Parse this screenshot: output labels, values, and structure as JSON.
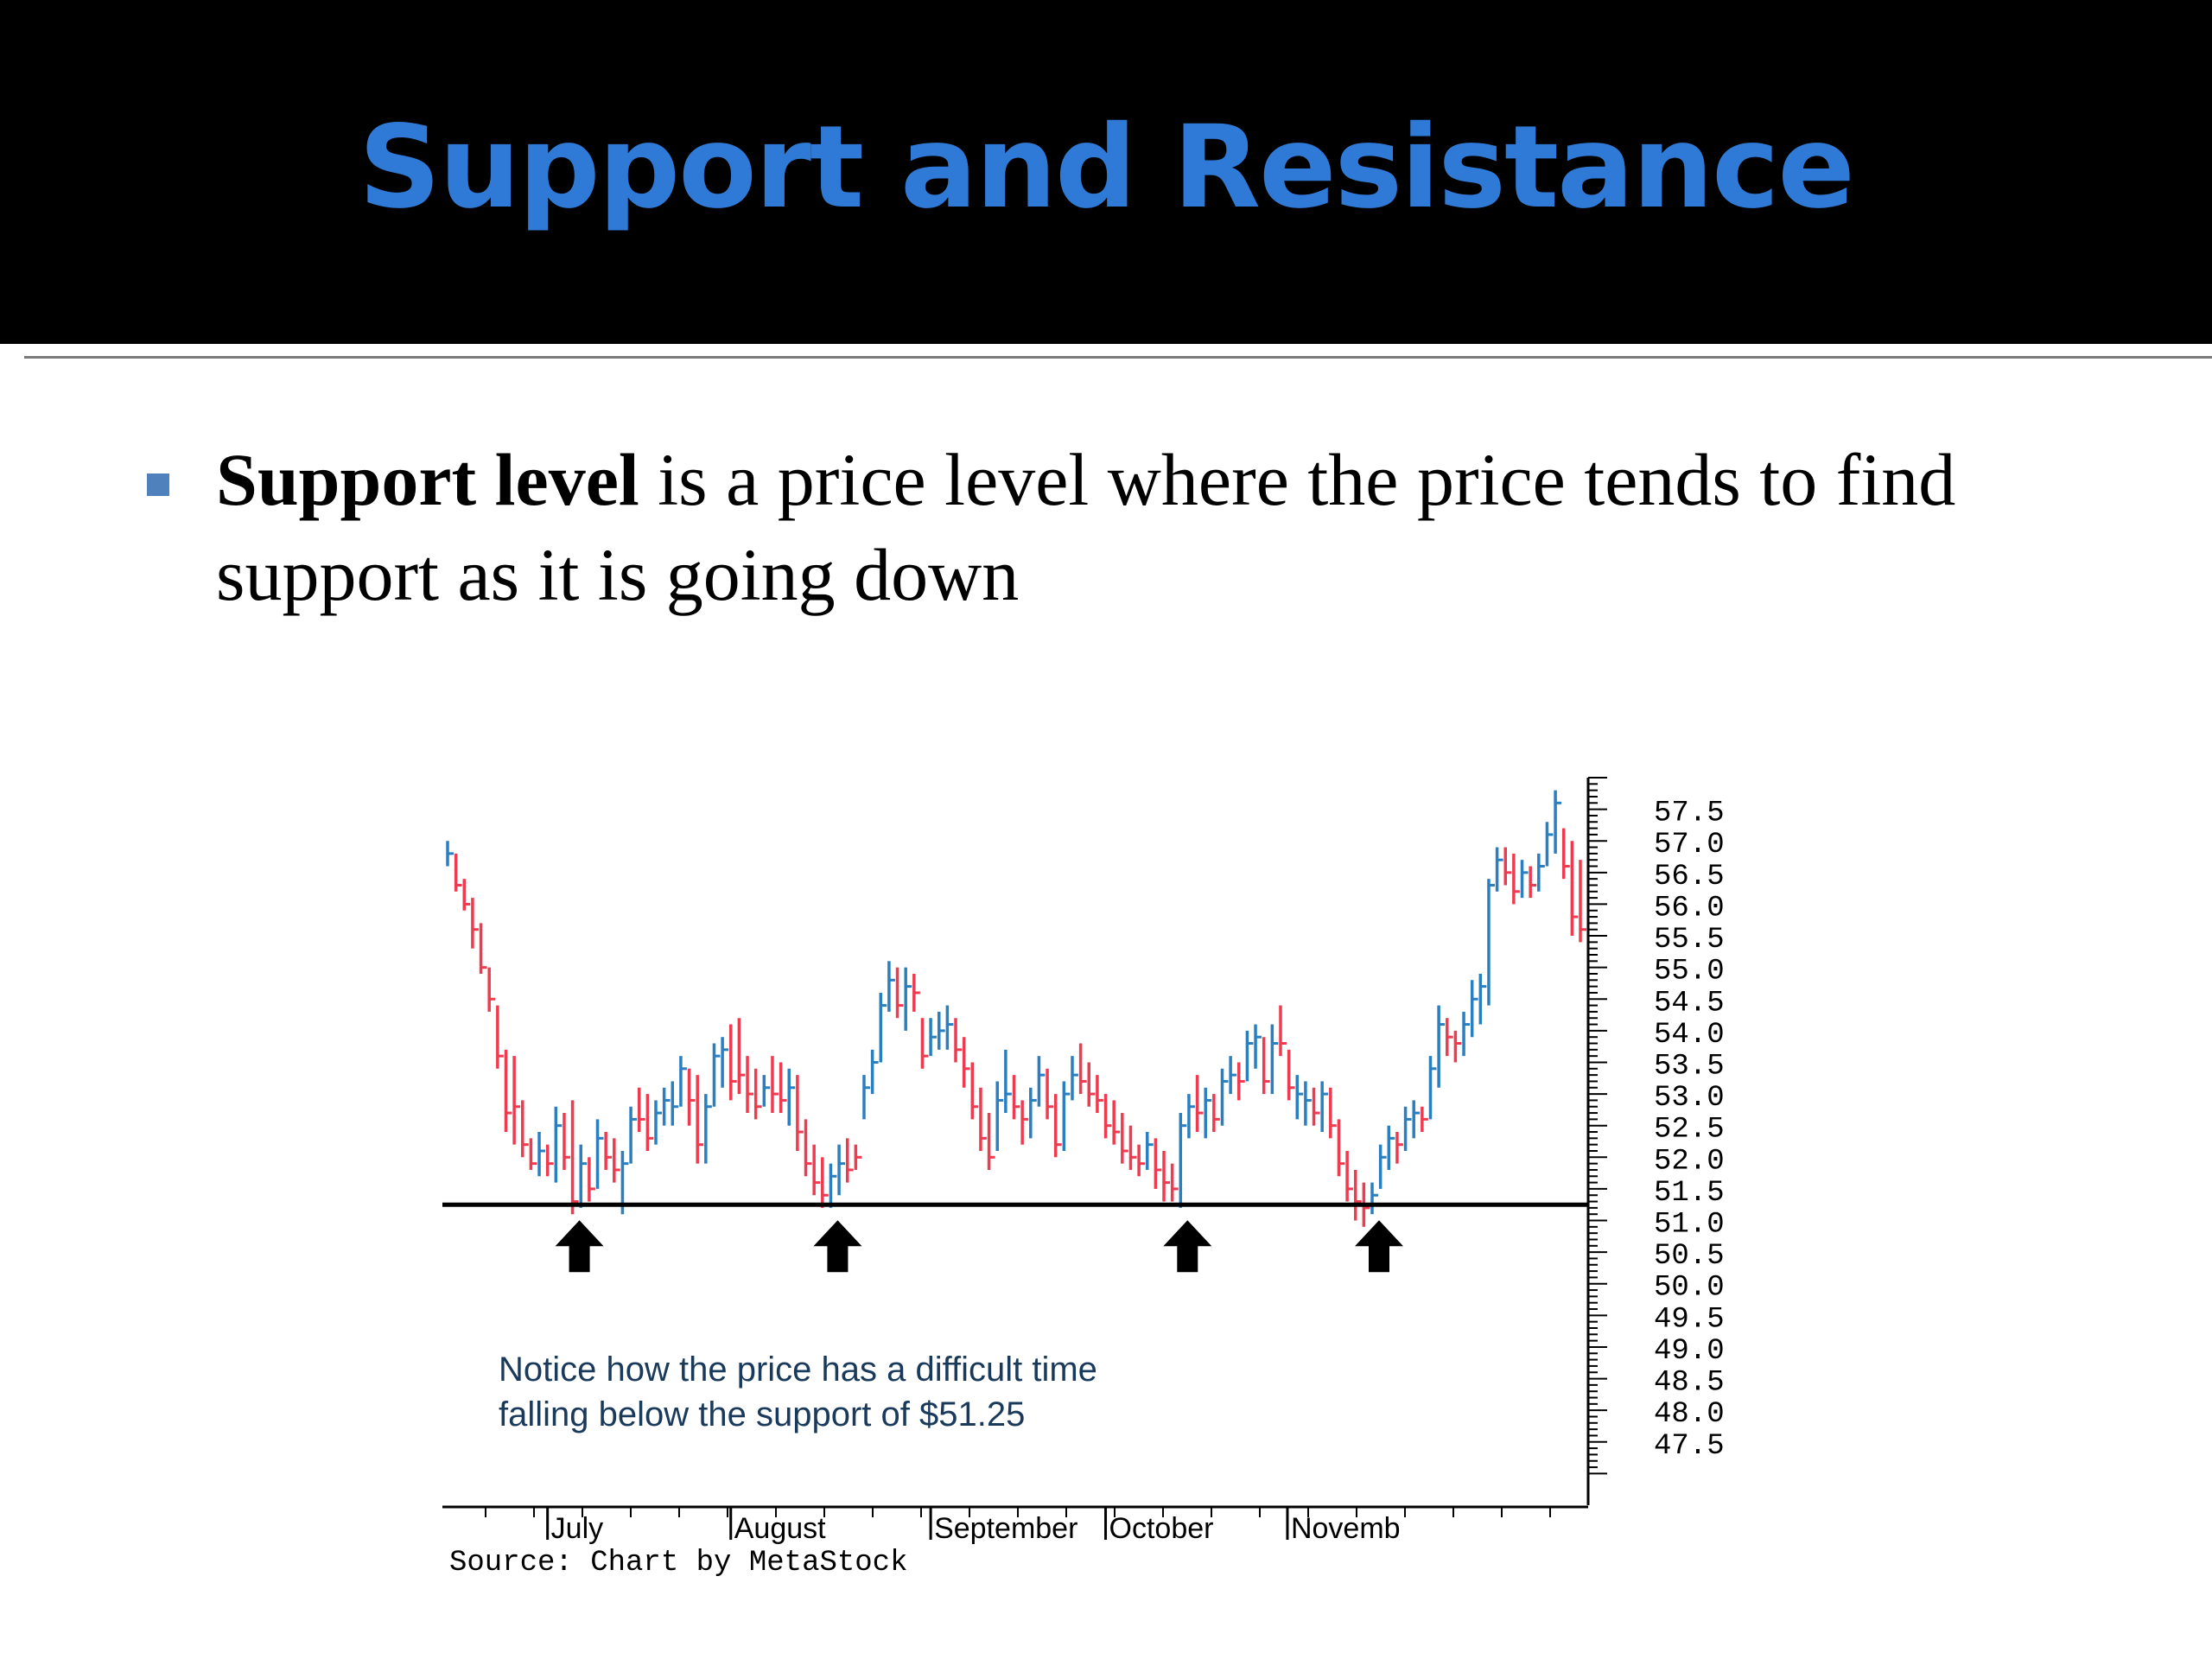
{
  "slide": {
    "title": "Support and Resistance",
    "bullet": {
      "term": "Support level",
      "text": " is a price level where the price tends to find support as it is going down"
    }
  },
  "colors": {
    "title": "#2e7ad6",
    "up_bar": "#2a7fc1",
    "down_bar": "#ee3b4f",
    "bullet_marker": "#4f81bd"
  },
  "chart_data": {
    "type": "ohlc",
    "source": "Source: Chart by MetaStock",
    "annotation": [
      "Notice how the price has a difficult time",
      "falling below the support of $51.25"
    ],
    "support_level": 51.25,
    "ylim": [
      46.5,
      58.0
    ],
    "y_ticks": [
      "57.5",
      "57.0",
      "56.5",
      "56.0",
      "55.5",
      "55.0",
      "54.5",
      "54.0",
      "53.5",
      "53.0",
      "52.5",
      "52.0",
      "51.5",
      "51.0",
      "50.5",
      "50.0",
      "49.5",
      "49.0",
      "48.5",
      "48.0",
      "47.5"
    ],
    "months": [
      "July",
      "August",
      "September",
      "October",
      "Novemb"
    ],
    "arrows_at_bar": [
      15,
      46,
      88,
      111
    ],
    "bars": [
      {
        "h": 57.0,
        "l": 56.6,
        "c": 56.8,
        "d": "up"
      },
      {
        "h": 56.8,
        "l": 56.2,
        "c": 56.3,
        "d": "dn"
      },
      {
        "h": 56.4,
        "l": 55.9,
        "c": 56.0,
        "d": "dn"
      },
      {
        "h": 56.1,
        "l": 55.3,
        "c": 55.6,
        "d": "dn"
      },
      {
        "h": 55.7,
        "l": 54.9,
        "c": 55.0,
        "d": "dn"
      },
      {
        "h": 55.0,
        "l": 54.3,
        "c": 54.5,
        "d": "dn"
      },
      {
        "h": 54.4,
        "l": 53.4,
        "c": 53.6,
        "d": "dn"
      },
      {
        "h": 53.7,
        "l": 52.4,
        "c": 52.7,
        "d": "dn"
      },
      {
        "h": 53.6,
        "l": 52.2,
        "c": 52.8,
        "d": "dn"
      },
      {
        "h": 52.9,
        "l": 52.0,
        "c": 52.2,
        "d": "dn"
      },
      {
        "h": 52.3,
        "l": 51.8,
        "c": 51.9,
        "d": "dn"
      },
      {
        "h": 52.4,
        "l": 51.7,
        "c": 52.1,
        "d": "up"
      },
      {
        "h": 52.2,
        "l": 51.7,
        "c": 51.9,
        "d": "dn"
      },
      {
        "h": 52.8,
        "l": 51.6,
        "c": 52.5,
        "d": "up"
      },
      {
        "h": 52.7,
        "l": 51.8,
        "c": 52.0,
        "d": "dn"
      },
      {
        "h": 52.9,
        "l": 51.1,
        "c": 51.3,
        "d": "dn"
      },
      {
        "h": 52.2,
        "l": 51.2,
        "c": 51.9,
        "d": "up"
      },
      {
        "h": 52.0,
        "l": 51.3,
        "c": 51.5,
        "d": "dn"
      },
      {
        "h": 52.6,
        "l": 51.5,
        "c": 52.3,
        "d": "up"
      },
      {
        "h": 52.4,
        "l": 51.8,
        "c": 52.0,
        "d": "dn"
      },
      {
        "h": 52.3,
        "l": 51.6,
        "c": 51.8,
        "d": "dn"
      },
      {
        "h": 52.1,
        "l": 51.1,
        "c": 51.9,
        "d": "up"
      },
      {
        "h": 52.8,
        "l": 51.9,
        "c": 52.6,
        "d": "up"
      },
      {
        "h": 53.1,
        "l": 52.4,
        "c": 52.6,
        "d": "dn"
      },
      {
        "h": 53.0,
        "l": 52.1,
        "c": 52.3,
        "d": "dn"
      },
      {
        "h": 52.9,
        "l": 52.2,
        "c": 52.7,
        "d": "up"
      },
      {
        "h": 53.1,
        "l": 52.5,
        "c": 52.9,
        "d": "up"
      },
      {
        "h": 53.2,
        "l": 52.5,
        "c": 52.8,
        "d": "up"
      },
      {
        "h": 53.6,
        "l": 52.8,
        "c": 53.4,
        "d": "up"
      },
      {
        "h": 53.4,
        "l": 52.5,
        "c": 52.9,
        "d": "dn"
      },
      {
        "h": 53.3,
        "l": 51.9,
        "c": 52.2,
        "d": "dn"
      },
      {
        "h": 53.0,
        "l": 51.9,
        "c": 52.8,
        "d": "up"
      },
      {
        "h": 53.8,
        "l": 52.8,
        "c": 53.6,
        "d": "up"
      },
      {
        "h": 53.9,
        "l": 53.1,
        "c": 53.7,
        "d": "up"
      },
      {
        "h": 54.1,
        "l": 52.9,
        "c": 53.2,
        "d": "dn"
      },
      {
        "h": 54.2,
        "l": 53.0,
        "c": 53.3,
        "d": "dn"
      },
      {
        "h": 53.6,
        "l": 52.7,
        "c": 53.0,
        "d": "dn"
      },
      {
        "h": 53.4,
        "l": 52.6,
        "c": 52.8,
        "d": "dn"
      },
      {
        "h": 53.3,
        "l": 52.8,
        "c": 53.1,
        "d": "up"
      },
      {
        "h": 53.6,
        "l": 52.7,
        "c": 53.0,
        "d": "dn"
      },
      {
        "h": 53.5,
        "l": 52.7,
        "c": 52.9,
        "d": "dn"
      },
      {
        "h": 53.4,
        "l": 52.5,
        "c": 53.1,
        "d": "up"
      },
      {
        "h": 53.3,
        "l": 52.1,
        "c": 52.4,
        "d": "dn"
      },
      {
        "h": 52.6,
        "l": 51.7,
        "c": 51.9,
        "d": "dn"
      },
      {
        "h": 52.2,
        "l": 51.4,
        "c": 51.6,
        "d": "dn"
      },
      {
        "h": 52.0,
        "l": 51.2,
        "c": 51.4,
        "d": "dn"
      },
      {
        "h": 51.9,
        "l": 51.2,
        "c": 51.7,
        "d": "up"
      },
      {
        "h": 52.2,
        "l": 51.4,
        "c": 51.9,
        "d": "up"
      },
      {
        "h": 52.3,
        "l": 51.6,
        "c": 51.8,
        "d": "dn"
      },
      {
        "h": 52.2,
        "l": 51.8,
        "c": 52.0,
        "d": "dn"
      },
      {
        "h": 53.3,
        "l": 52.6,
        "c": 53.1,
        "d": "up"
      },
      {
        "h": 53.7,
        "l": 53.0,
        "c": 53.5,
        "d": "up"
      },
      {
        "h": 54.6,
        "l": 53.5,
        "c": 54.4,
        "d": "up"
      },
      {
        "h": 55.1,
        "l": 54.3,
        "c": 54.8,
        "d": "up"
      },
      {
        "h": 55.0,
        "l": 54.2,
        "c": 54.4,
        "d": "dn"
      },
      {
        "h": 55.0,
        "l": 54.0,
        "c": 54.7,
        "d": "up"
      },
      {
        "h": 54.9,
        "l": 54.3,
        "c": 54.6,
        "d": "dn"
      },
      {
        "h": 54.2,
        "l": 53.4,
        "c": 53.6,
        "d": "dn"
      },
      {
        "h": 54.2,
        "l": 53.6,
        "c": 53.9,
        "d": "up"
      },
      {
        "h": 54.3,
        "l": 53.7,
        "c": 54.0,
        "d": "up"
      },
      {
        "h": 54.4,
        "l": 53.7,
        "c": 54.1,
        "d": "up"
      },
      {
        "h": 54.2,
        "l": 53.5,
        "c": 53.7,
        "d": "dn"
      },
      {
        "h": 53.9,
        "l": 53.1,
        "c": 53.4,
        "d": "dn"
      },
      {
        "h": 53.5,
        "l": 52.6,
        "c": 52.8,
        "d": "dn"
      },
      {
        "h": 53.1,
        "l": 52.1,
        "c": 52.3,
        "d": "dn"
      },
      {
        "h": 52.7,
        "l": 51.8,
        "c": 52.0,
        "d": "dn"
      },
      {
        "h": 53.2,
        "l": 52.1,
        "c": 52.9,
        "d": "up"
      },
      {
        "h": 53.7,
        "l": 52.7,
        "c": 53.0,
        "d": "up"
      },
      {
        "h": 53.3,
        "l": 52.6,
        "c": 52.8,
        "d": "dn"
      },
      {
        "h": 52.9,
        "l": 52.2,
        "c": 52.6,
        "d": "dn"
      },
      {
        "h": 53.1,
        "l": 52.3,
        "c": 52.9,
        "d": "up"
      },
      {
        "h": 53.6,
        "l": 52.8,
        "c": 53.3,
        "d": "up"
      },
      {
        "h": 53.4,
        "l": 52.6,
        "c": 52.8,
        "d": "dn"
      },
      {
        "h": 53.0,
        "l": 52.0,
        "c": 52.2,
        "d": "dn"
      },
      {
        "h": 53.2,
        "l": 52.1,
        "c": 53.0,
        "d": "up"
      },
      {
        "h": 53.6,
        "l": 52.9,
        "c": 53.3,
        "d": "up"
      },
      {
        "h": 53.8,
        "l": 53.0,
        "c": 53.2,
        "d": "dn"
      },
      {
        "h": 53.5,
        "l": 52.8,
        "c": 53.0,
        "d": "dn"
      },
      {
        "h": 53.3,
        "l": 52.7,
        "c": 52.9,
        "d": "dn"
      },
      {
        "h": 53.0,
        "l": 52.3,
        "c": 52.5,
        "d": "dn"
      },
      {
        "h": 52.9,
        "l": 52.2,
        "c": 52.4,
        "d": "dn"
      },
      {
        "h": 52.7,
        "l": 51.9,
        "c": 52.1,
        "d": "dn"
      },
      {
        "h": 52.5,
        "l": 51.8,
        "c": 52.0,
        "d": "dn"
      },
      {
        "h": 52.2,
        "l": 51.7,
        "c": 51.9,
        "d": "dn"
      },
      {
        "h": 52.4,
        "l": 51.8,
        "c": 52.2,
        "d": "up"
      },
      {
        "h": 52.3,
        "l": 51.5,
        "c": 51.8,
        "d": "dn"
      },
      {
        "h": 52.1,
        "l": 51.3,
        "c": 51.6,
        "d": "dn"
      },
      {
        "h": 51.9,
        "l": 51.3,
        "c": 51.5,
        "d": "dn"
      },
      {
        "h": 52.7,
        "l": 51.2,
        "c": 52.5,
        "d": "up"
      },
      {
        "h": 53.0,
        "l": 52.3,
        "c": 52.8,
        "d": "up"
      },
      {
        "h": 53.3,
        "l": 52.4,
        "c": 52.7,
        "d": "dn"
      },
      {
        "h": 53.1,
        "l": 52.3,
        "c": 52.9,
        "d": "up"
      },
      {
        "h": 53.0,
        "l": 52.4,
        "c": 52.6,
        "d": "dn"
      },
      {
        "h": 53.4,
        "l": 52.5,
        "c": 53.2,
        "d": "up"
      },
      {
        "h": 53.6,
        "l": 53.0,
        "c": 53.3,
        "d": "up"
      },
      {
        "h": 53.5,
        "l": 52.9,
        "c": 53.2,
        "d": "dn"
      },
      {
        "h": 54.0,
        "l": 53.2,
        "c": 53.8,
        "d": "up"
      },
      {
        "h": 54.1,
        "l": 53.4,
        "c": 53.9,
        "d": "up"
      },
      {
        "h": 53.9,
        "l": 53.0,
        "c": 53.2,
        "d": "dn"
      },
      {
        "h": 54.1,
        "l": 53.0,
        "c": 53.8,
        "d": "up"
      },
      {
        "h": 54.4,
        "l": 53.6,
        "c": 53.8,
        "d": "dn"
      },
      {
        "h": 53.7,
        "l": 52.9,
        "c": 53.1,
        "d": "dn"
      },
      {
        "h": 53.3,
        "l": 52.6,
        "c": 53.0,
        "d": "up"
      },
      {
        "h": 53.2,
        "l": 52.5,
        "c": 52.9,
        "d": "up"
      },
      {
        "h": 53.1,
        "l": 52.5,
        "c": 52.7,
        "d": "dn"
      },
      {
        "h": 53.2,
        "l": 52.4,
        "c": 53.0,
        "d": "up"
      },
      {
        "h": 53.1,
        "l": 52.3,
        "c": 52.5,
        "d": "dn"
      },
      {
        "h": 52.6,
        "l": 51.7,
        "c": 51.9,
        "d": "dn"
      },
      {
        "h": 52.1,
        "l": 51.3,
        "c": 51.5,
        "d": "dn"
      },
      {
        "h": 51.8,
        "l": 51.0,
        "c": 51.3,
        "d": "dn"
      },
      {
        "h": 51.6,
        "l": 50.9,
        "c": 51.2,
        "d": "dn"
      },
      {
        "h": 51.6,
        "l": 51.1,
        "c": 51.4,
        "d": "up"
      },
      {
        "h": 52.2,
        "l": 51.5,
        "c": 52.0,
        "d": "up"
      },
      {
        "h": 52.5,
        "l": 51.8,
        "c": 52.3,
        "d": "up"
      },
      {
        "h": 52.4,
        "l": 51.9,
        "c": 52.2,
        "d": "dn"
      },
      {
        "h": 52.8,
        "l": 52.1,
        "c": 52.6,
        "d": "up"
      },
      {
        "h": 52.9,
        "l": 52.3,
        "c": 52.7,
        "d": "up"
      },
      {
        "h": 52.8,
        "l": 52.4,
        "c": 52.6,
        "d": "dn"
      },
      {
        "h": 53.6,
        "l": 52.6,
        "c": 53.4,
        "d": "up"
      },
      {
        "h": 54.4,
        "l": 53.1,
        "c": 54.1,
        "d": "up"
      },
      {
        "h": 54.2,
        "l": 53.6,
        "c": 53.9,
        "d": "dn"
      },
      {
        "h": 54.0,
        "l": 53.5,
        "c": 53.8,
        "d": "dn"
      },
      {
        "h": 54.3,
        "l": 53.6,
        "c": 54.1,
        "d": "up"
      },
      {
        "h": 54.8,
        "l": 53.9,
        "c": 54.5,
        "d": "up"
      },
      {
        "h": 54.9,
        "l": 54.1,
        "c": 54.7,
        "d": "up"
      },
      {
        "h": 56.4,
        "l": 54.4,
        "c": 56.3,
        "d": "up"
      },
      {
        "h": 56.9,
        "l": 56.2,
        "c": 56.7,
        "d": "up"
      },
      {
        "h": 56.9,
        "l": 56.3,
        "c": 56.5,
        "d": "dn"
      },
      {
        "h": 56.8,
        "l": 56.0,
        "c": 56.2,
        "d": "dn"
      },
      {
        "h": 56.7,
        "l": 56.1,
        "c": 56.5,
        "d": "up"
      },
      {
        "h": 56.6,
        "l": 56.1,
        "c": 56.3,
        "d": "dn"
      },
      {
        "h": 56.8,
        "l": 56.2,
        "c": 56.6,
        "d": "up"
      },
      {
        "h": 57.3,
        "l": 56.6,
        "c": 57.1,
        "d": "up"
      },
      {
        "h": 57.8,
        "l": 56.8,
        "c": 57.6,
        "d": "up"
      },
      {
        "h": 57.2,
        "l": 56.4,
        "c": 56.6,
        "d": "dn"
      },
      {
        "h": 57.0,
        "l": 55.5,
        "c": 55.8,
        "d": "dn"
      },
      {
        "h": 56.7,
        "l": 55.4,
        "c": 55.6,
        "d": "dn"
      }
    ]
  }
}
